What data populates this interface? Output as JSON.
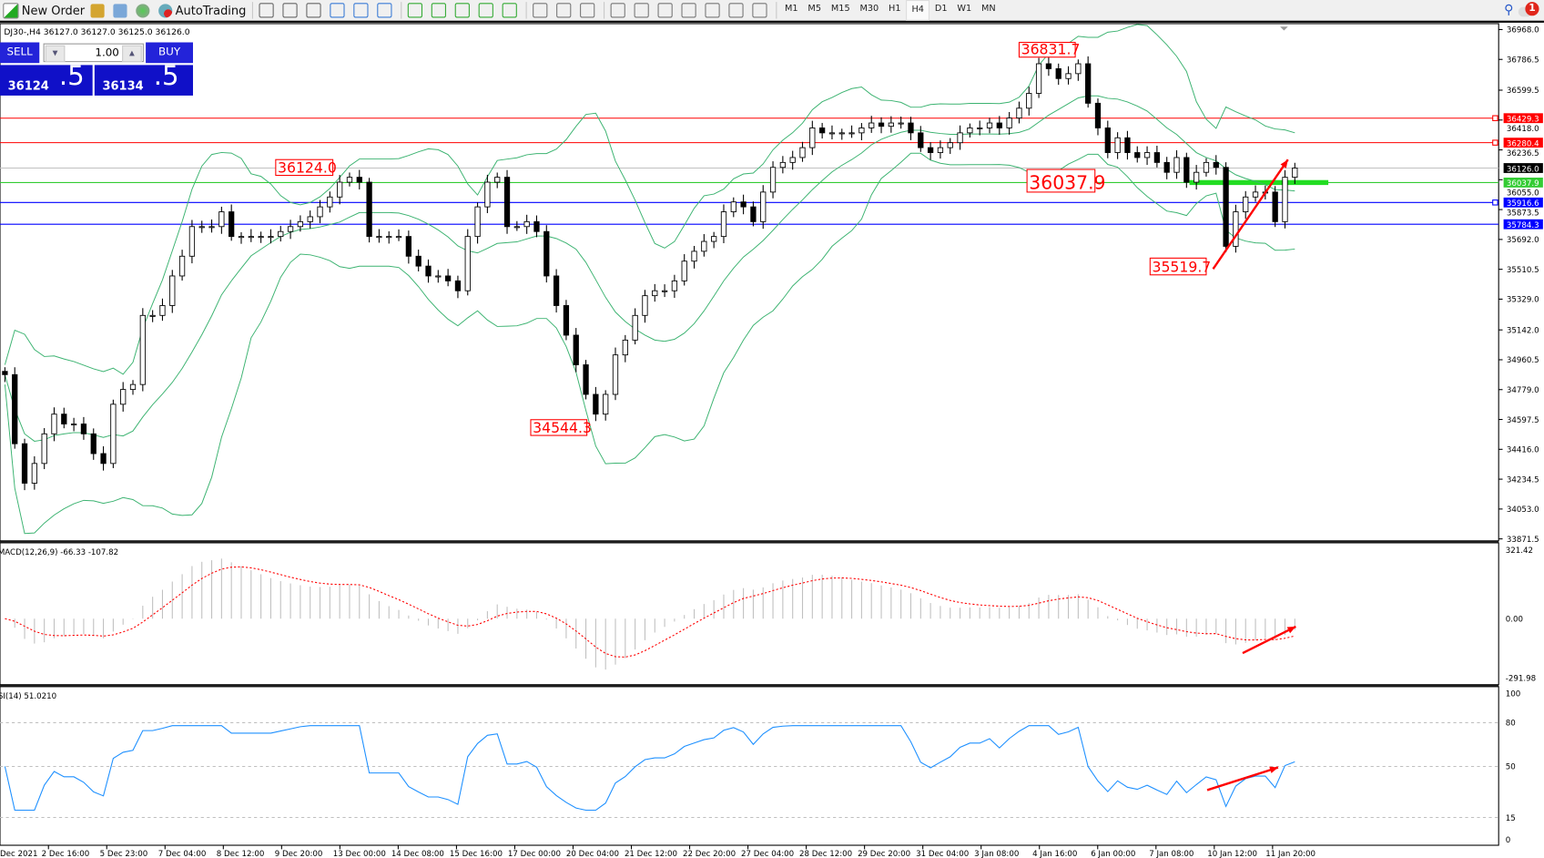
{
  "toolbar": {
    "new_order": "New Order",
    "autotrading": "AutoTrading",
    "timeframes": [
      "M1",
      "M5",
      "M15",
      "M30",
      "H1",
      "H4",
      "D1",
      "W1",
      "MN"
    ],
    "active_timeframe": "H4",
    "notification_count": "1",
    "icons": [
      "market-watch-icon",
      "data-window-icon",
      "signals-icon",
      "bar-chart-icon",
      "candlestick-icon",
      "line-chart-icon",
      "zoom-in-icon",
      "zoom-out-icon",
      "tile-windows-icon",
      "autoscroll-icon",
      "chart-shift-icon",
      "indicators-icon",
      "periods-icon",
      "templates-icon",
      "cursor-icon",
      "crosshair-icon",
      "vertical-line-icon",
      "horizontal-line-icon",
      "trendline-icon",
      "equidistant-channel-icon",
      "fibonacci-icon",
      "text-icon",
      "text-label-icon",
      "arrows-icon",
      "search-icon",
      "chat-icon"
    ]
  },
  "info_line": "DJ30-,H4  36127.0 36127.0 36125.0 36126.0",
  "trade_panel": {
    "sell": "SELL",
    "buy": "BUY",
    "lot": "1.00",
    "sell_price_main": "36124",
    "sell_price_pip": ".5",
    "buy_price_main": "36134",
    "buy_price_pip": ".5"
  },
  "colors": {
    "bullish": "#ffffff",
    "bearish": "#000000",
    "bands": "#3cb371",
    "resistance": "#ff0000",
    "support": "#0000ff",
    "green_level": "#33cc33",
    "bid": "#c0c0c0",
    "macd_hist": "#c0c0c0",
    "macd_signal": "#ff0000",
    "rsi": "#1e90ff",
    "arrow": "#ff0000"
  },
  "chart_data": [
    {
      "type": "candlestick",
      "symbol": "DJ30-",
      "timeframe": "H4",
      "ylim": [
        33871.5,
        36968.0
      ],
      "y_ticks": [
        "36968.0",
        "36786.5",
        "36599.5",
        "36418.0",
        "36236.5",
        "36055.0",
        "35873.5",
        "35692.0",
        "35510.5",
        "35329.0",
        "35142.0",
        "34960.5",
        "34779.0",
        "34597.5",
        "34416.0",
        "34234.5",
        "34053.0",
        "33871.5"
      ],
      "x_ticks": [
        "Dec 2021",
        "2 Dec 16:00",
        "5 Dec 23:00",
        "7 Dec 04:00",
        "8 Dec 12:00",
        "9 Dec 20:00",
        "13 Dec 00:00",
        "14 Dec 08:00",
        "15 Dec 16:00",
        "17 Dec 00:00",
        "20 Dec 04:00",
        "21 Dec 12:00",
        "22 Dec 20:00",
        "27 Dec 04:00",
        "28 Dec 12:00",
        "29 Dec 20:00",
        "31 Dec 04:00",
        "3 Jan 08:00",
        "4 Jan 16:00",
        "6 Jan 00:00",
        "7 Jan 08:00",
        "10 Jan 12:00",
        "11 Jan 20:00"
      ],
      "closes": [
        34870,
        34450,
        34210,
        34330,
        34510,
        34630,
        34570,
        34570,
        34510,
        34390,
        34330,
        34690,
        34780,
        34810,
        35230,
        35230,
        35290,
        35470,
        35590,
        35770,
        35770,
        35770,
        35860,
        35710,
        35710,
        35710,
        35710,
        35710,
        35740,
        35770,
        35800,
        35830,
        35890,
        35950,
        36040,
        36070,
        36040,
        35710,
        35710,
        35710,
        35710,
        35590,
        35530,
        35470,
        35470,
        35440,
        35380,
        35710,
        35890,
        36040,
        36070,
        35770,
        35770,
        35800,
        35740,
        35470,
        35290,
        35110,
        34930,
        34750,
        34630,
        34750,
        34990,
        35080,
        35230,
        35350,
        35380,
        35380,
        35440,
        35560,
        35620,
        35680,
        35710,
        35860,
        35920,
        35890,
        35800,
        35980,
        36130,
        36160,
        36190,
        36250,
        36370,
        36340,
        36340,
        36340,
        36340,
        36370,
        36400,
        36380,
        36400,
        36400,
        36340,
        36250,
        36220,
        36250,
        36280,
        36340,
        36370,
        36370,
        36400,
        36370,
        36430,
        36490,
        36580,
        36760,
        36730,
        36670,
        36700,
        36760,
        36520,
        36370,
        36220,
        36310,
        36220,
        36190,
        36220,
        36160,
        36100,
        36190,
        36040,
        36100,
        36160,
        36130,
        35650,
        35860,
        35950,
        35980,
        35980,
        35800,
        36070,
        36126
      ],
      "levels": [
        {
          "value": "36429.3",
          "kind": "resistance"
        },
        {
          "value": "36280.4",
          "kind": "resistance"
        },
        {
          "value": "36126.0",
          "kind": "bid"
        },
        {
          "value": "36037.9",
          "kind": "green_level"
        },
        {
          "value": "35916.6",
          "kind": "support"
        },
        {
          "value": "35784.3",
          "kind": "support"
        }
      ],
      "annotations": [
        "36831.7",
        "36124.0",
        "36037.9",
        "34544.3",
        "35519.7"
      ],
      "indicator": "Bollinger Bands"
    },
    {
      "type": "bar",
      "title": "MACD(12,26,9) -66.33 -107.82",
      "ylim": [
        -291.98,
        321.42
      ],
      "y_ticks": [
        "321.42",
        "0.00",
        "-291.98"
      ]
    },
    {
      "type": "line",
      "title": "SI(14) 51.0210",
      "ylim": [
        0,
        100
      ],
      "y_ticks": [
        "100",
        "80",
        "50",
        "15",
        "0"
      ],
      "levels": [
        80,
        50,
        15
      ]
    }
  ]
}
